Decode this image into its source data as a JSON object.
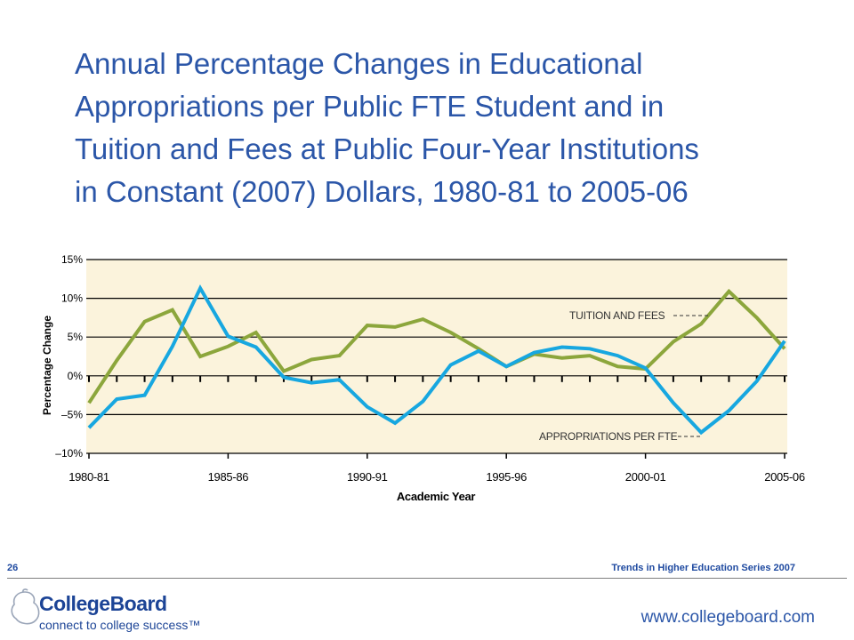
{
  "slide": {
    "title_lines": [
      "Annual Percentage Changes in Educational",
      "Appropriations per Public FTE Student and in",
      "Tuition and Fees at Public Four-Year Institutions",
      "in Constant (2007) Dollars, 1980-81 to 2005-06"
    ],
    "page_number": "26",
    "series_note": "Trends in Higher Education Series 2007",
    "url": "www.collegeboard.com",
    "logo_text": "CollegeBoard",
    "logo_tagline": "connect to college success™"
  },
  "colors": {
    "title": "#2b56a8",
    "plot_bg": "#fbf3dc",
    "tuition": "#8ca63c",
    "appropriations": "#17a7e0",
    "gridline": "#000000",
    "logo": "#1c4496"
  },
  "chart_data": {
    "type": "line",
    "title": "",
    "xlabel": "Academic Year",
    "ylabel": "Percentage Change",
    "ylim": [
      -10,
      15
    ],
    "yticks": [
      15,
      10,
      5,
      0,
      -5,
      -10
    ],
    "ytick_labels": [
      "15%",
      "10%",
      "5%",
      "0%",
      "–5%",
      "–10%"
    ],
    "x_tick_labels": [
      "1980-81",
      "1985-86",
      "1990-91",
      "1995-96",
      "2000-01",
      "2005-06"
    ],
    "x_tick_positions": [
      0,
      5,
      10,
      15,
      20,
      25
    ],
    "grid": "horizontal",
    "legend": "inline labels",
    "series": [
      {
        "name": "TUITION AND FEES",
        "values": [
          -3.5,
          2.0,
          7.0,
          8.5,
          2.5,
          3.8,
          5.6,
          0.6,
          2.1,
          2.6,
          6.5,
          6.3,
          7.3,
          5.6,
          3.5,
          1.2,
          2.8,
          2.3,
          2.6,
          1.2,
          0.9,
          4.4,
          6.7,
          10.9,
          7.5,
          3.5
        ]
      },
      {
        "name": "APPROPRIATIONS PER FTE",
        "values": [
          -6.7,
          -3.0,
          -2.5,
          3.8,
          11.3,
          5.1,
          3.7,
          -0.2,
          -0.9,
          -0.5,
          -4.0,
          -6.1,
          -3.3,
          1.4,
          3.2,
          1.2,
          3.0,
          3.7,
          3.5,
          2.6,
          1.0,
          -3.5,
          -7.3,
          -4.5,
          -0.7,
          4.5
        ]
      }
    ]
  }
}
